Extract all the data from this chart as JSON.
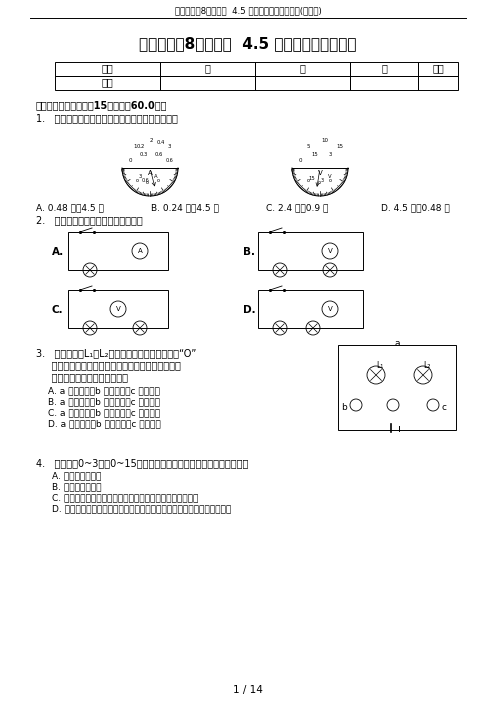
{
  "header_text": "浙教版科学8年级上册  4.5 电压的测量同步练习题(含解析)",
  "title": "浙教版科学8年级上册  4.5 电压的测量同步练习",
  "table_headers": [
    "题号",
    "一",
    "二",
    "三",
    "总分"
  ],
  "table_row": [
    "得分",
    "",
    "",
    "",
    ""
  ],
  "section1_title": "一、选择题（本大题內15小题，內60.0分）",
  "q1_text": "1.   如图所示，电流表和电压表的示数分别为（）。",
  "q1_options": [
    "A. 0.48 安，4.5 伏",
    "B. 0.24 安，4.5 伏",
    "C. 2.4 安，0.9 伏",
    "D. 4.5 安，0.48 伏"
  ],
  "q2_text": "2.   下列各电路图中完全无误的是（）",
  "q3_line1": "3.   如图所示，L₁、L₂是小灯泡，且均正常发光，“O”",
  "q3_line2": "     内可以连接电流表、电压表测量电路中的电流、电",
  "q3_line3": "     压，以下说法中正确的是（）",
  "q3_options": [
    "A. a 为电流表，b 为电流表，c 为电压表",
    "B. a 为电流表，b 为电流表，c 为电流表",
    "C. a 为电压表，b 为电流表，c 为电流表",
    "D. a 为电压表，b 为电压表，c 为电流表"
  ],
  "q4_text": "4.   电压表有0~3伏和0~15伏两个量程，下列所述的选择原则正确的是",
  "q4_options": [
    "A. 每次选用大量程",
    "B. 每次选用小量程",
    "C. 经试触后，被测电压不超过小的量程时，应选用小的量程",
    "D. 虽管选用的量程不同，但对测量结果毫无影响，所以，量程可随意选择"
  ],
  "page_text": "1 / 14",
  "bg_color": "#ffffff",
  "text_color": "#000000"
}
